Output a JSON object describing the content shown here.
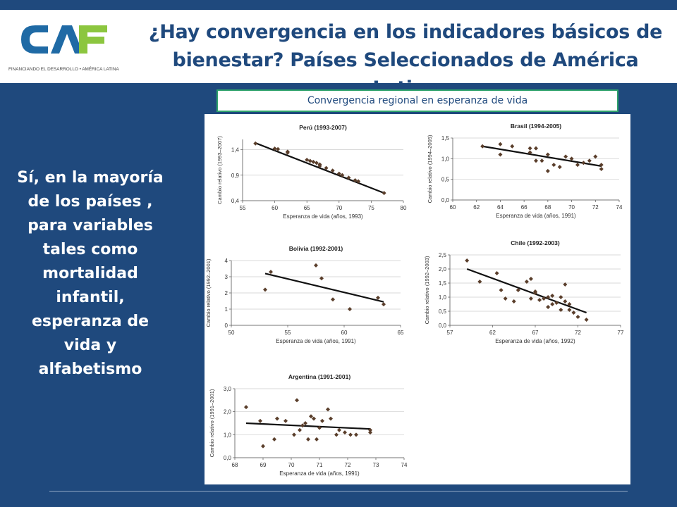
{
  "header": {
    "title": "¿Hay convergencia en los indicadores básicos de bienestar? Países Seleccionados de América Latina",
    "logo_text": "CAF",
    "logo_tagline": "FINANCIANDO EL DESARROLLO • AMÉRICA LATINA"
  },
  "subtitle": "Convergencia regional en  esperanza de vida",
  "left_text": "Sí, en la mayoría de los países , para variables tales como mortalidad infantil, esperanza de vida y alfabetismo",
  "colors": {
    "background": "#1f497d",
    "title": "#1f497d",
    "subtitle_border": "#2fa36b",
    "logo_blue": "#1f6aa5",
    "logo_green": "#8cc63f",
    "marker": "#5a3e2b",
    "line": "#111111"
  },
  "chart_data": [
    {
      "type": "scatter",
      "title": "Perú (1993-2007)",
      "xlabel": "Esperanza de vida (años, 1993)",
      "ylabel": "Cambio relativo (1993–2007)",
      "xlim": [
        55,
        80
      ],
      "ylim": [
        0.4,
        1.6
      ],
      "xticks": [
        55,
        60,
        65,
        70,
        75,
        80
      ],
      "yticks": [
        0.4,
        0.9,
        1.4
      ],
      "xtick_labels": [
        "55",
        "60",
        "65",
        "70",
        "75",
        "80"
      ],
      "ytick_labels": [
        "0,4",
        "0,9",
        "1,4"
      ],
      "x": [
        57,
        60,
        60.5,
        62,
        62,
        65,
        65.5,
        66,
        66.5,
        67,
        67,
        68,
        69,
        70,
        70.5,
        71.5,
        72.5,
        73,
        77
      ],
      "y": [
        1.52,
        1.42,
        1.41,
        1.36,
        1.34,
        1.2,
        1.18,
        1.16,
        1.14,
        1.11,
        1.08,
        1.04,
        0.99,
        0.93,
        0.9,
        0.85,
        0.8,
        0.78,
        0.55
      ],
      "trend": [
        [
          57,
          1.53
        ],
        [
          77,
          0.55
        ]
      ]
    },
    {
      "type": "scatter",
      "title": "Brasil (1994-2005)",
      "xlabel": "Esperanza de vida (años, 1991)",
      "ylabel": "Cambio relativo (1994–2005)",
      "xlim": [
        60,
        74
      ],
      "ylim": [
        0,
        1.5
      ],
      "xticks": [
        60,
        62,
        64,
        66,
        68,
        70,
        72,
        74
      ],
      "yticks": [
        0,
        0.5,
        1,
        1.5
      ],
      "xtick_labels": [
        "60",
        "62",
        "64",
        "66",
        "68",
        "70",
        "72",
        "74"
      ],
      "ytick_labels": [
        "0,0",
        "0,5",
        "1,0",
        "1,5"
      ],
      "x": [
        62.5,
        64,
        64,
        65,
        66.5,
        66.5,
        67,
        67,
        67.5,
        68,
        68,
        68.5,
        69,
        69.5,
        70,
        70.5,
        71,
        71.5,
        72,
        72.5,
        72.5
      ],
      "y": [
        1.3,
        1.35,
        1.1,
        1.3,
        1.25,
        1.15,
        1.25,
        0.95,
        0.95,
        0.7,
        1.1,
        0.85,
        0.8,
        1.05,
        1.0,
        0.85,
        0.9,
        0.95,
        1.05,
        0.85,
        0.75
      ],
      "trend": [
        [
          62.5,
          1.3
        ],
        [
          72.5,
          0.82
        ]
      ]
    },
    {
      "type": "scatter",
      "title": "Bolivia (1992-2001)",
      "xlabel": "Esperanza de vida (años, 1991)",
      "ylabel": "Cambio relativo (1992–2001)",
      "xlim": [
        50,
        65
      ],
      "ylim": [
        0,
        4
      ],
      "xticks": [
        50,
        55,
        60,
        65
      ],
      "yticks": [
        0,
        1,
        2,
        3,
        4
      ],
      "xtick_labels": [
        "50",
        "55",
        "60",
        "65"
      ],
      "ytick_labels": [
        "0",
        "1",
        "2",
        "3",
        "4"
      ],
      "x": [
        53,
        53.5,
        57.5,
        58,
        59,
        60.5,
        63,
        63.5
      ],
      "y": [
        2.2,
        3.3,
        3.7,
        2.9,
        1.6,
        1.0,
        1.7,
        1.3
      ],
      "trend": [
        [
          53,
          3.2
        ],
        [
          63.5,
          1.45
        ]
      ]
    },
    {
      "type": "scatter",
      "title": "Chile (1992-2003)",
      "xlabel": "Esperanza de vida (años, 1992)",
      "ylabel": "Cambio relativo (1992–2003)",
      "xlim": [
        57,
        77
      ],
      "ylim": [
        0,
        2.5
      ],
      "xticks": [
        57,
        62,
        67,
        72,
        77
      ],
      "yticks": [
        0,
        0.5,
        1,
        1.5,
        2,
        2.5
      ],
      "xtick_labels": [
        "57",
        "62",
        "67",
        "72",
        "77"
      ],
      "ytick_labels": [
        "0,0",
        "0,5",
        "1,0",
        "1,5",
        "2,0",
        "2,5"
      ],
      "x": [
        59,
        60.5,
        62.5,
        63,
        63.5,
        64.5,
        65,
        66,
        66.5,
        66.5,
        67,
        67,
        67.5,
        68,
        68.5,
        68.5,
        69,
        69,
        69.5,
        70,
        70,
        70.5,
        70.5,
        71,
        71,
        71.5,
        72,
        73
      ],
      "y": [
        2.3,
        1.55,
        1.85,
        1.25,
        0.95,
        0.85,
        1.25,
        1.55,
        0.95,
        1.65,
        1.15,
        1.2,
        0.9,
        0.95,
        1.0,
        0.65,
        1.05,
        0.75,
        0.8,
        0.55,
        1.0,
        0.85,
        1.45,
        0.55,
        0.75,
        0.45,
        0.3,
        0.2
      ],
      "trend": [
        [
          59,
          2.0
        ],
        [
          73,
          0.45
        ]
      ]
    },
    {
      "type": "scatter",
      "title": "Argentina (1991-2001)",
      "xlabel": "Esperanza de vida (años, 1991)",
      "ylabel": "Cambio relativo (1991–2001)",
      "xlim": [
        68,
        74
      ],
      "ylim": [
        0,
        3
      ],
      "xticks": [
        68,
        69,
        70,
        71,
        72,
        73,
        74
      ],
      "yticks": [
        0,
        1,
        2,
        3
      ],
      "xtick_labels": [
        "68",
        "69",
        "70",
        "71",
        "72",
        "73",
        "74"
      ],
      "ytick_labels": [
        "0,0",
        "1,0",
        "2,0",
        "3,0"
      ],
      "x": [
        68.4,
        68.9,
        69,
        69.4,
        69.5,
        69.8,
        70.1,
        70.2,
        70.3,
        70.4,
        70.5,
        70.6,
        70.7,
        70.8,
        70.9,
        71,
        71.1,
        71.3,
        71.4,
        71.6,
        71.7,
        71.9,
        72.1,
        72.3,
        72.8,
        72.8
      ],
      "y": [
        2.2,
        1.6,
        0.5,
        0.8,
        1.7,
        1.6,
        1.0,
        2.5,
        1.2,
        1.4,
        1.5,
        0.8,
        1.8,
        1.7,
        0.8,
        1.3,
        1.6,
        2.1,
        1.7,
        1.0,
        1.2,
        1.1,
        1.0,
        1.0,
        1.2,
        1.1
      ],
      "trend": [
        [
          68.4,
          1.5
        ],
        [
          72.8,
          1.25
        ]
      ]
    }
  ]
}
